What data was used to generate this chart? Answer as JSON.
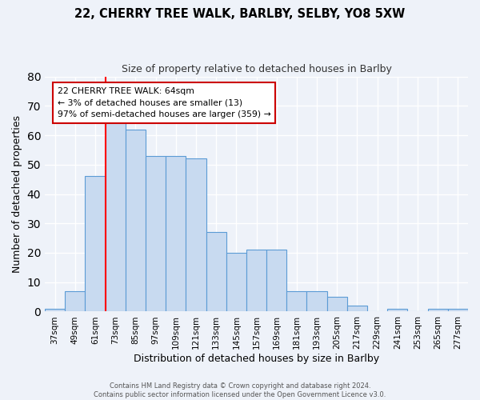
{
  "title": "22, CHERRY TREE WALK, BARLBY, SELBY, YO8 5XW",
  "subtitle": "Size of property relative to detached houses in Barlby",
  "xlabel": "Distribution of detached houses by size in Barlby",
  "ylabel": "Number of detached properties",
  "footer_line1": "Contains HM Land Registry data © Crown copyright and database right 2024.",
  "footer_line2": "Contains public sector information licensed under the Open Government Licence v3.0.",
  "annotation_line1": "22 CHERRY TREE WALK: 64sqm",
  "annotation_line2": "← 3% of detached houses are smaller (13)",
  "annotation_line3": "97% of semi-detached houses are larger (359) →",
  "bar_labels": [
    "37sqm",
    "49sqm",
    "61sqm",
    "73sqm",
    "85sqm",
    "97sqm",
    "109sqm",
    "121sqm",
    "133sqm",
    "145sqm",
    "157sqm",
    "169sqm",
    "181sqm",
    "193sqm",
    "205sqm",
    "217sqm",
    "229sqm",
    "241sqm",
    "253sqm",
    "265sqm",
    "277sqm"
  ],
  "bar_heights": [
    1,
    7,
    46,
    67,
    62,
    53,
    53,
    52,
    27,
    20,
    21,
    21,
    7,
    7,
    5,
    2,
    0,
    1,
    0,
    1,
    1
  ],
  "bar_color": "#c8daf0",
  "bar_edge_color": "#5b9bd5",
  "red_line_index": 2,
  "ylim": [
    0,
    80
  ],
  "yticks": [
    0,
    10,
    20,
    30,
    40,
    50,
    60,
    70,
    80
  ],
  "background_color": "#eef2f9",
  "grid_color": "#ffffff",
  "annotation_box_color": "#ffffff",
  "annotation_box_edge": "#cc0000"
}
